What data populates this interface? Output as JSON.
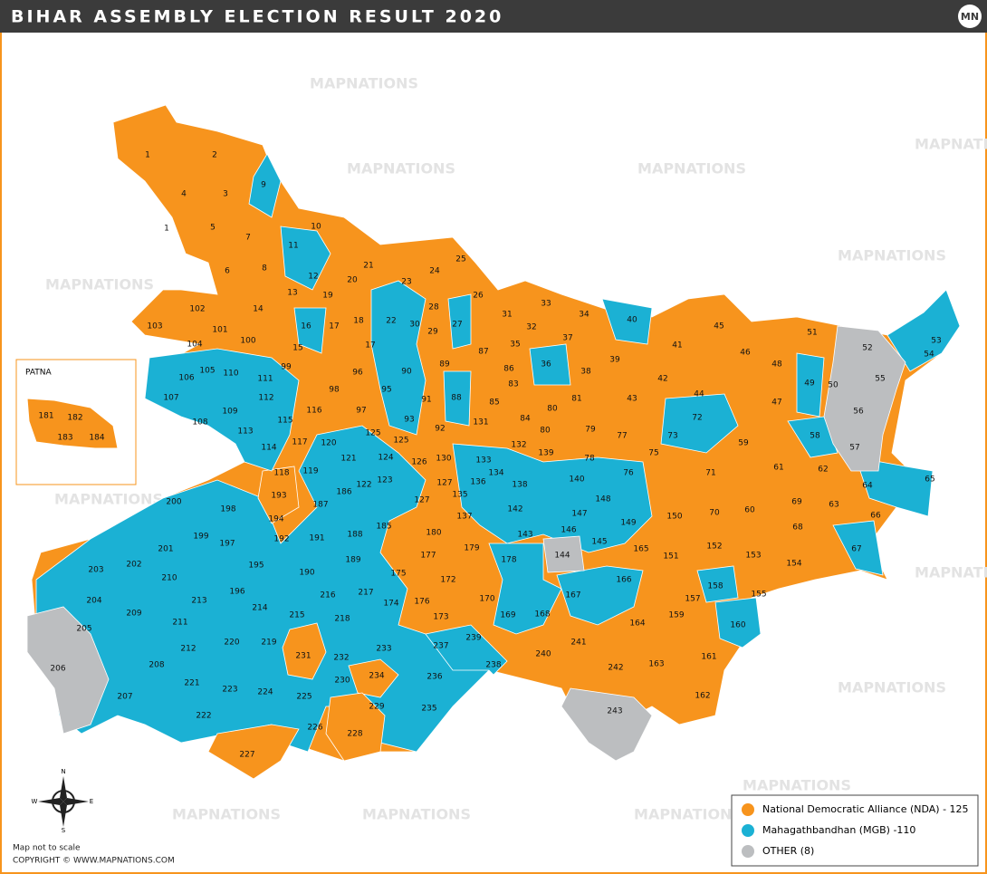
{
  "header": {
    "title": "BIHAR ASSEMBLY ELECTION RESULT 2020",
    "logo": "MN"
  },
  "watermark": "MAPNATIONS",
  "inset": {
    "title": "PATNA",
    "labels": [
      "181",
      "182",
      "183",
      "184"
    ]
  },
  "map": {
    "labels": [
      "1",
      "2",
      "4",
      "3",
      "9",
      "1",
      "5",
      "7",
      "10",
      "11",
      "6",
      "8",
      "21",
      "25",
      "24",
      "12",
      "13",
      "20",
      "23",
      "26",
      "19",
      "28",
      "103",
      "102",
      "14",
      "16",
      "17",
      "18",
      "22",
      "30",
      "27",
      "31",
      "33",
      "34",
      "40",
      "45",
      "51",
      "52",
      "53",
      "54",
      "101",
      "104",
      "100",
      "15",
      "17",
      "29",
      "87",
      "32",
      "37",
      "35",
      "41",
      "46",
      "48",
      "105",
      "110",
      "99",
      "96",
      "89",
      "86",
      "36",
      "39",
      "38",
      "106",
      "111",
      "90",
      "83",
      "42",
      "49",
      "50",
      "55",
      "107",
      "112",
      "98",
      "95",
      "91",
      "88",
      "85",
      "81",
      "43",
      "44",
      "47",
      "109",
      "116",
      "97",
      "80",
      "56",
      "108",
      "115",
      "93",
      "131",
      "84",
      "80",
      "79",
      "72",
      "113",
      "125",
      "92",
      "77",
      "73",
      "58",
      "114",
      "117",
      "120",
      "125",
      "132",
      "139",
      "59",
      "121",
      "124",
      "130",
      "133",
      "78",
      "75",
      "57",
      "118",
      "119",
      "126",
      "134",
      "61",
      "62",
      "123",
      "122",
      "127",
      "136",
      "138",
      "140",
      "76",
      "71",
      "65",
      "64",
      "186",
      "193",
      "135",
      "148",
      "200",
      "198",
      "187",
      "127",
      "142",
      "147",
      "69",
      "63",
      "66",
      "194",
      "137",
      "150",
      "70",
      "60",
      "149",
      "185",
      "199",
      "197",
      "192",
      "191",
      "188",
      "180",
      "146",
      "143",
      "68",
      "145",
      "201",
      "179",
      "177",
      "144",
      "165",
      "151",
      "152",
      "153",
      "67",
      "202",
      "195",
      "189",
      "178",
      "154",
      "203",
      "210",
      "190",
      "175",
      "172",
      "166",
      "196",
      "216",
      "217",
      "158",
      "167",
      "155",
      "204",
      "213",
      "214",
      "174",
      "176",
      "170",
      "157",
      "209",
      "215",
      "218",
      "173",
      "169",
      "168",
      "159",
      "205",
      "211",
      "164",
      "160",
      "212",
      "220",
      "219",
      "233",
      "237",
      "239",
      "241",
      "231",
      "232",
      "240",
      "161",
      "206",
      "208",
      "238",
      "242",
      "163",
      "234",
      "236",
      "221",
      "230",
      "223",
      "224",
      "225",
      "207",
      "162",
      "229",
      "235",
      "243",
      "222",
      "226",
      "228",
      "227"
    ]
  },
  "compass": {
    "n": "N",
    "s": "S",
    "e": "E",
    "w": "W"
  },
  "footer": {
    "note": "Map not to scale",
    "copyright": "COPYRIGHT © WWW.MAPNATIONS.COM"
  },
  "legend": {
    "items": [
      {
        "label": "National Democratic Alliance (NDA) - 125",
        "color": "#f7941d"
      },
      {
        "label": "Mahagathbandhan (MGB) -110",
        "color": "#1bb1d4"
      },
      {
        "label": "OTHER (8)",
        "color": "#bcbec0"
      }
    ]
  }
}
